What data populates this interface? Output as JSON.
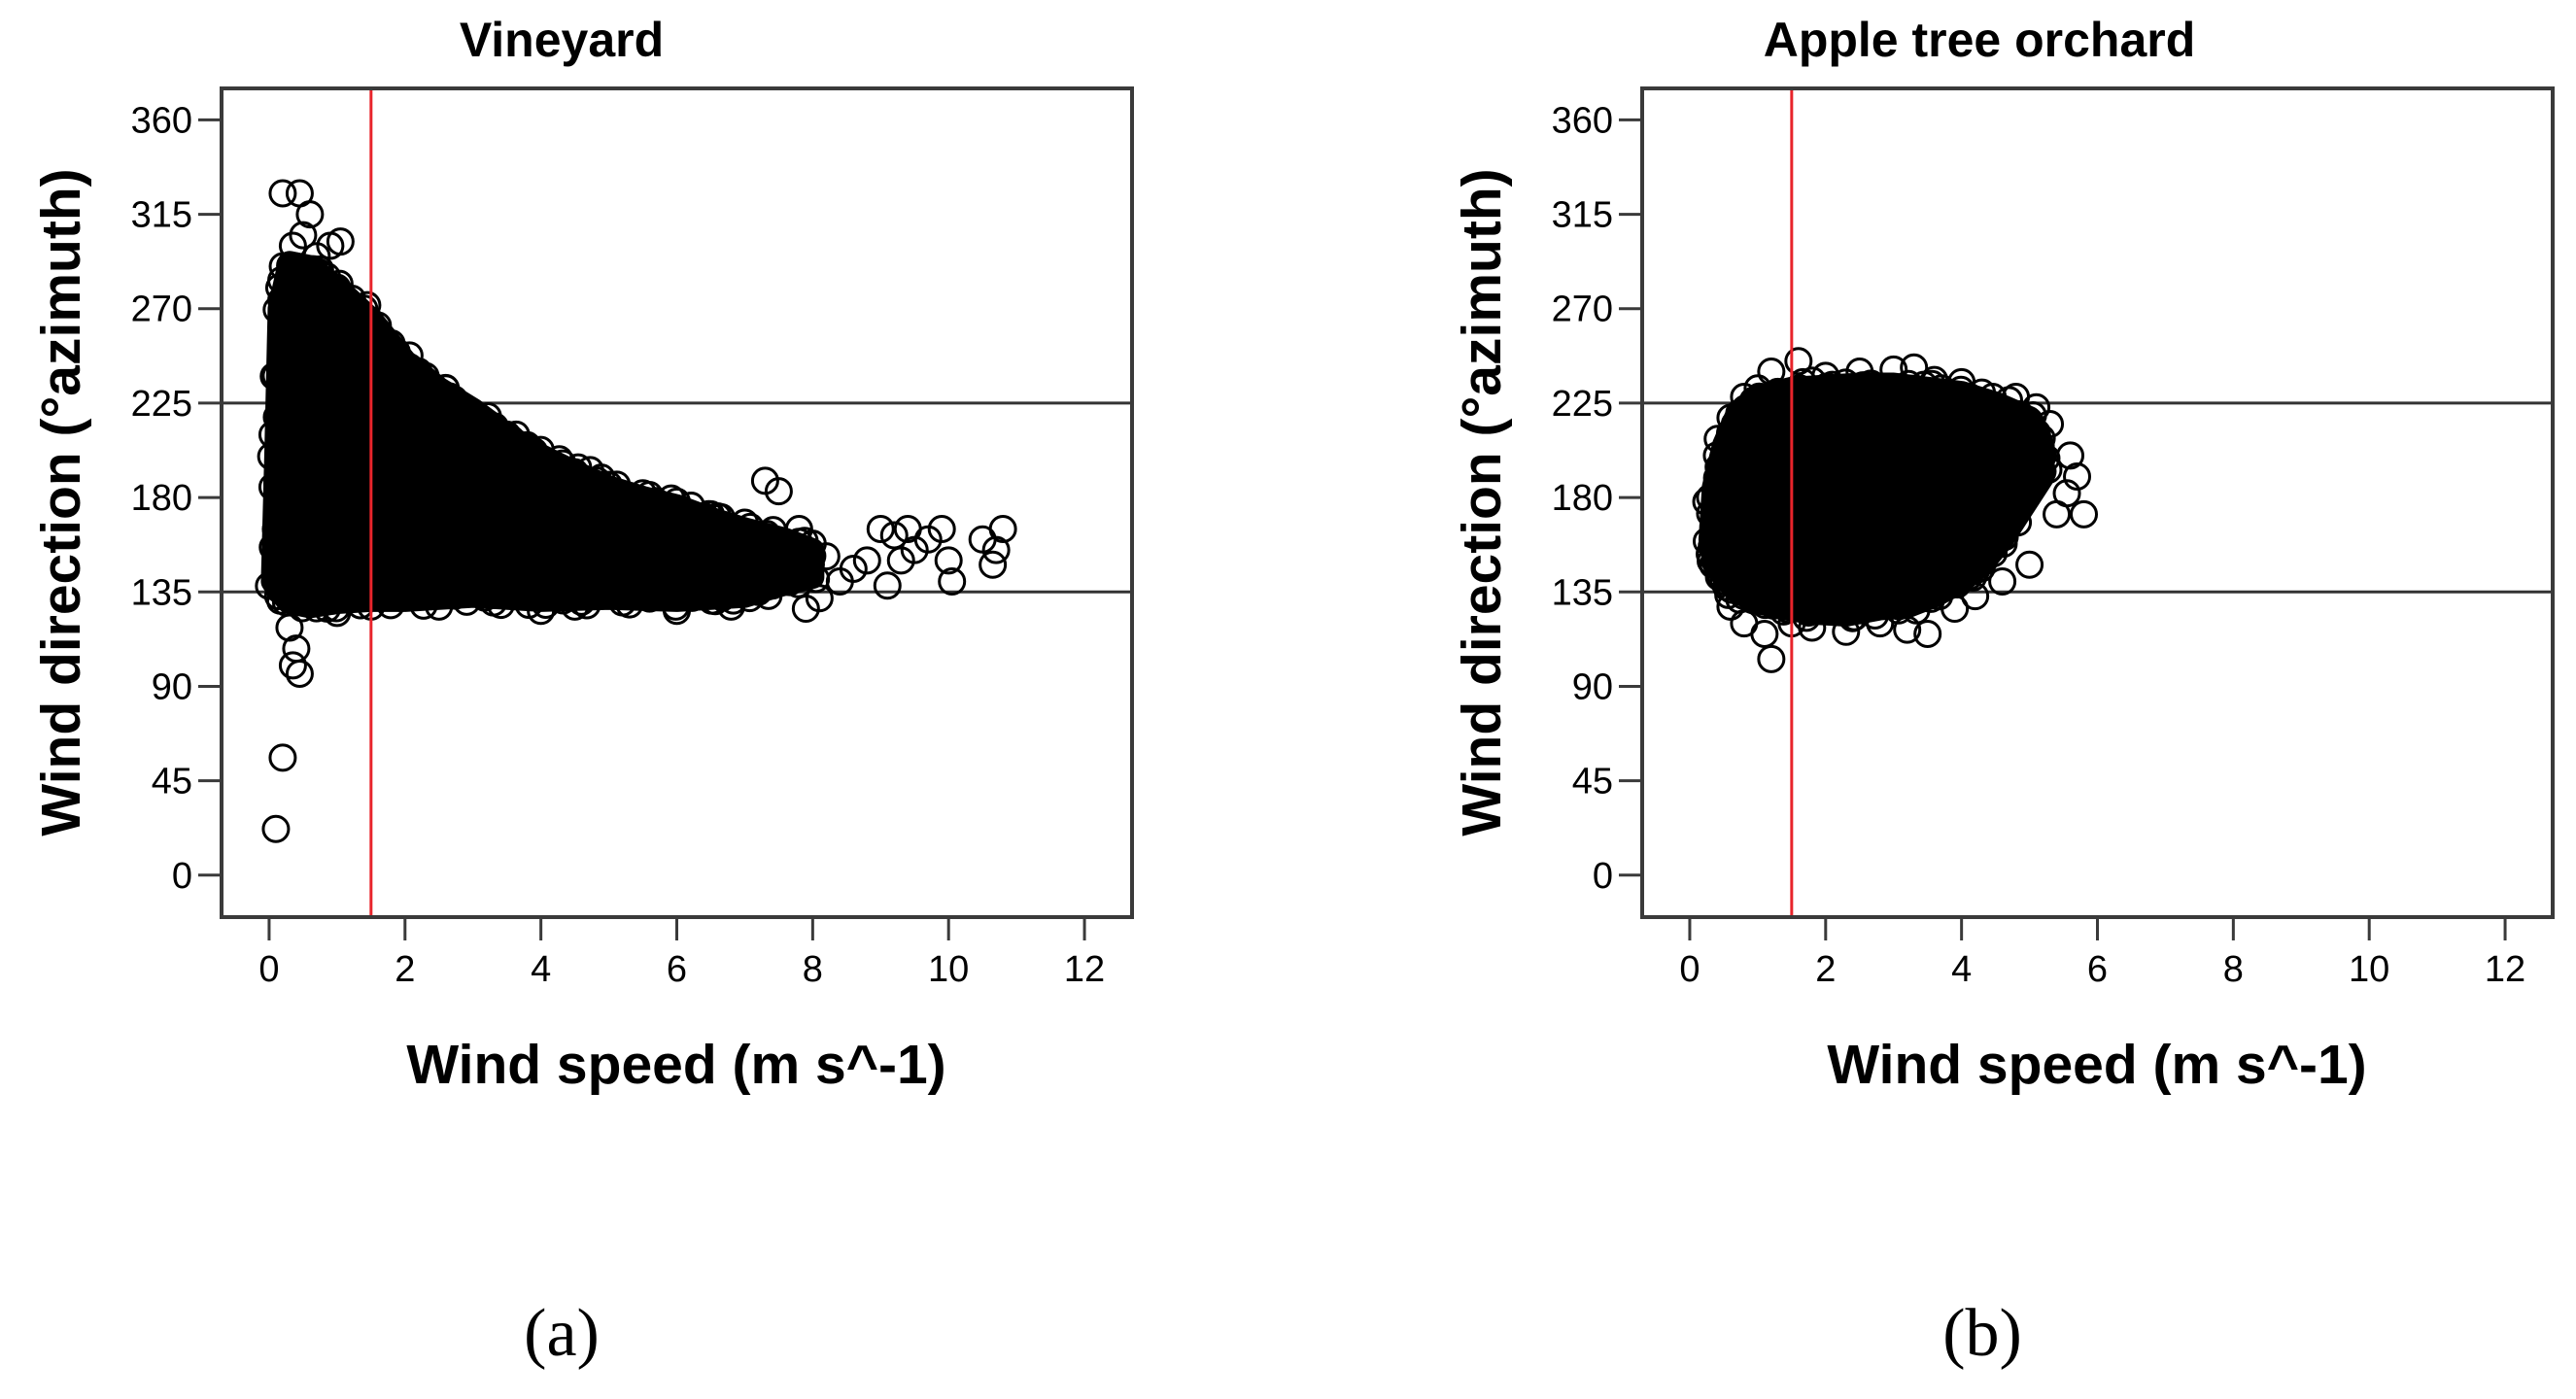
{
  "chart_data": [
    {
      "type": "scatter",
      "title": "Vineyard",
      "xlabel": "Wind speed (m s^-1)",
      "ylabel": "Wind direction (°azimuth)",
      "xlim": [
        -0.7,
        12.7
      ],
      "ylim": [
        -20,
        375
      ],
      "xticks": [
        "0",
        "2",
        "4",
        "6",
        "8",
        "10",
        "12"
      ],
      "yticks": [
        "0",
        "45",
        "90",
        "135",
        "180",
        "225",
        "270",
        "315",
        "360"
      ],
      "grid": false,
      "reference_lines": {
        "horizontal": [
          135,
          225
        ],
        "vertical": [
          1.5
        ],
        "horizontal_color": "#333333",
        "vertical_color": "#e8242b"
      },
      "marker": "open-circle",
      "points": [
        [
          0.1,
          22
        ],
        [
          0.2,
          56
        ],
        [
          0.35,
          100
        ],
        [
          0.45,
          96
        ],
        [
          0.4,
          108
        ],
        [
          0.3,
          118
        ],
        [
          0.25,
          130
        ],
        [
          0.2,
          325
        ],
        [
          0.45,
          325
        ],
        [
          0.6,
          315
        ],
        [
          0.5,
          305
        ],
        [
          0.35,
          300
        ],
        [
          0.7,
          295
        ],
        [
          0.9,
          300
        ],
        [
          1.05,
          302
        ],
        [
          0.15,
          280
        ],
        [
          0.25,
          265
        ],
        [
          0.3,
          250
        ],
        [
          0.1,
          238
        ],
        [
          0.05,
          210
        ],
        [
          0.05,
          185
        ],
        [
          0.1,
          165
        ],
        [
          0.2,
          150
        ],
        [
          0.3,
          140
        ],
        [
          1.4,
          270
        ],
        [
          1.6,
          262
        ],
        [
          1.8,
          245
        ],
        [
          2.2,
          240
        ],
        [
          2.6,
          232
        ],
        [
          3.0,
          220
        ],
        [
          3.5,
          210
        ],
        [
          3.9,
          202
        ],
        [
          4.5,
          192
        ],
        [
          5.0,
          186
        ],
        [
          5.5,
          182
        ],
        [
          6.0,
          178
        ],
        [
          6.5,
          172
        ],
        [
          7.0,
          168
        ],
        [
          7.3,
          188
        ],
        [
          7.5,
          183
        ],
        [
          7.8,
          165
        ],
        [
          8.0,
          158
        ],
        [
          8.2,
          152
        ],
        [
          8.1,
          132
        ],
        [
          7.9,
          127
        ],
        [
          8.4,
          140
        ],
        [
          8.6,
          146
        ],
        [
          8.8,
          150
        ],
        [
          9.0,
          165
        ],
        [
          9.2,
          162
        ],
        [
          9.4,
          165
        ],
        [
          9.3,
          150
        ],
        [
          9.1,
          138
        ],
        [
          9.5,
          155
        ],
        [
          9.7,
          160
        ],
        [
          9.9,
          165
        ],
        [
          10.0,
          150
        ],
        [
          10.05,
          140
        ],
        [
          10.5,
          160
        ],
        [
          10.7,
          155
        ],
        [
          10.65,
          148
        ],
        [
          10.8,
          165
        ],
        [
          1.0,
          125
        ],
        [
          1.5,
          128
        ],
        [
          2.5,
          128
        ],
        [
          3.3,
          130
        ],
        [
          4.0,
          126
        ],
        [
          4.5,
          128
        ],
        [
          5.2,
          130
        ],
        [
          6.0,
          126
        ],
        [
          6.8,
          128
        ],
        [
          7.2,
          135
        ],
        [
          0.3,
          200
        ],
        [
          0.6,
          230
        ],
        [
          0.8,
          260
        ],
        [
          1.0,
          280
        ],
        [
          1.2,
          250
        ],
        [
          1.3,
          210
        ],
        [
          1.1,
          175
        ],
        [
          0.9,
          150
        ],
        [
          0.7,
          190
        ],
        [
          0.5,
          170
        ]
      ],
      "density_hull": [
        [
          0.05,
          140
        ],
        [
          0.1,
          200
        ],
        [
          0.15,
          270
        ],
        [
          0.3,
          292
        ],
        [
          0.6,
          290
        ],
        [
          1.0,
          280
        ],
        [
          1.5,
          265
        ],
        [
          2.0,
          245
        ],
        [
          2.5,
          232
        ],
        [
          3.0,
          222
        ],
        [
          3.5,
          210
        ],
        [
          4.0,
          200
        ],
        [
          4.5,
          192
        ],
        [
          5.0,
          185
        ],
        [
          5.5,
          180
        ],
        [
          6.0,
          176
        ],
        [
          6.5,
          170
        ],
        [
          7.0,
          165
        ],
        [
          7.6,
          160
        ],
        [
          8.0,
          155
        ],
        [
          8.0,
          142
        ],
        [
          7.5,
          138
        ],
        [
          7.0,
          133
        ],
        [
          6.5,
          132
        ],
        [
          6.0,
          131
        ],
        [
          5.0,
          132
        ],
        [
          4.0,
          131
        ],
        [
          3.0,
          133
        ],
        [
          2.0,
          131
        ],
        [
          1.5,
          131
        ],
        [
          1.0,
          130
        ],
        [
          0.6,
          128
        ],
        [
          0.3,
          130
        ],
        [
          0.15,
          135
        ]
      ]
    },
    {
      "type": "scatter",
      "title": "Apple tree orchard",
      "xlabel": "Wind speed (m s^-1)",
      "ylabel": "Wind direction (°azimuth)",
      "xlim": [
        -0.7,
        12.7
      ],
      "ylim": [
        -20,
        375
      ],
      "xticks": [
        "0",
        "2",
        "4",
        "6",
        "8",
        "10",
        "12"
      ],
      "yticks": [
        "0",
        "45",
        "90",
        "135",
        "180",
        "225",
        "270",
        "315",
        "360"
      ],
      "grid": false,
      "reference_lines": {
        "horizontal": [
          135,
          225
        ],
        "vertical": [
          1.5
        ],
        "horizontal_color": "#333333",
        "vertical_color": "#e8242b"
      },
      "marker": "open-circle",
      "points": [
        [
          1.2,
          103
        ],
        [
          1.1,
          115
        ],
        [
          0.8,
          120
        ],
        [
          0.6,
          128
        ],
        [
          0.5,
          140
        ],
        [
          0.35,
          160
        ],
        [
          0.3,
          180
        ],
        [
          0.4,
          200
        ],
        [
          0.6,
          218
        ],
        [
          0.8,
          228
        ],
        [
          1.0,
          232
        ],
        [
          1.2,
          240
        ],
        [
          1.6,
          245
        ],
        [
          2.0,
          238
        ],
        [
          2.5,
          240
        ],
        [
          3.0,
          241
        ],
        [
          3.3,
          242
        ],
        [
          3.6,
          236
        ],
        [
          4.0,
          235
        ],
        [
          4.3,
          230
        ],
        [
          4.8,
          228
        ],
        [
          5.1,
          223
        ],
        [
          5.3,
          215
        ],
        [
          5.6,
          200
        ],
        [
          5.7,
          190
        ],
        [
          5.8,
          172
        ],
        [
          5.55,
          182
        ],
        [
          5.4,
          172
        ],
        [
          5.0,
          148
        ],
        [
          4.6,
          140
        ],
        [
          4.2,
          133
        ],
        [
          3.9,
          127
        ],
        [
          3.5,
          115
        ],
        [
          3.2,
          117
        ],
        [
          2.8,
          120
        ],
        [
          2.3,
          116
        ],
        [
          1.8,
          118
        ],
        [
          1.5,
          120
        ],
        [
          2.0,
          150
        ],
        [
          2.5,
          200
        ],
        [
          3.0,
          180
        ],
        [
          3.5,
          210
        ],
        [
          4.0,
          165
        ],
        [
          1.5,
          190
        ],
        [
          1.0,
          170
        ]
      ],
      "density_hull": [
        [
          0.3,
          160
        ],
        [
          0.35,
          185
        ],
        [
          0.5,
          205
        ],
        [
          0.7,
          220
        ],
        [
          1.0,
          228
        ],
        [
          1.5,
          232
        ],
        [
          2.0,
          233
        ],
        [
          2.5,
          234
        ],
        [
          3.0,
          234
        ],
        [
          3.5,
          232
        ],
        [
          4.0,
          230
        ],
        [
          4.5,
          225
        ],
        [
          5.0,
          218
        ],
        [
          5.2,
          205
        ],
        [
          5.2,
          190
        ],
        [
          4.9,
          175
        ],
        [
          4.6,
          160
        ],
        [
          4.3,
          148
        ],
        [
          4.0,
          140
        ],
        [
          3.6,
          133
        ],
        [
          3.2,
          128
        ],
        [
          2.8,
          127
        ],
        [
          2.3,
          124
        ],
        [
          1.8,
          125
        ],
        [
          1.4,
          127
        ],
        [
          1.0,
          130
        ],
        [
          0.7,
          135
        ],
        [
          0.5,
          142
        ],
        [
          0.35,
          150
        ]
      ]
    }
  ],
  "panel_labels": [
    "(a)",
    "(b)"
  ]
}
